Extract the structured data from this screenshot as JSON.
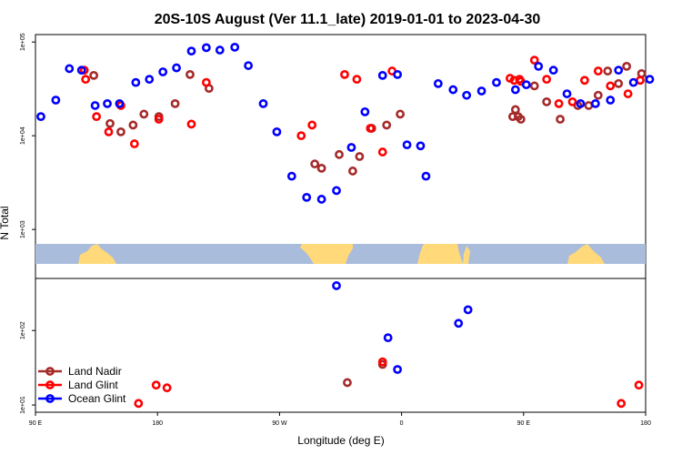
{
  "chart_data": {
    "type": "scatter",
    "title": "20S-10S August (Ver 11.1_late)   2019-01-01 to 2023-04-30",
    "xlabel": "Longitude (deg E)",
    "ylabel": "N Total",
    "x_tick_labels": [
      "90 E",
      "180",
      "90 W",
      "0",
      "90 E",
      "180"
    ],
    "x_ticks_deg": [
      90,
      180,
      270,
      360,
      450,
      540
    ],
    "xlim": [
      90,
      540
    ],
    "y_scale": "log",
    "upper_panel": {
      "ylim": [
        300,
        120000
      ],
      "y_tick_labels": [
        "1e+03",
        "1e+04",
        "1e+05"
      ],
      "y_ticks": [
        1000,
        10000,
        100000
      ]
    },
    "lower_panel": {
      "ylim": [
        8,
        500
      ],
      "y_tick_labels": [
        "1e+01",
        "1e+02"
      ],
      "y_ticks": [
        10,
        100
      ]
    },
    "legend_position": "bottom-left",
    "series": [
      {
        "name": "Land Nadir",
        "color": "#a52a2a",
        "panel": "upper",
        "points": [
          [
            133,
            44000
          ],
          [
            145,
            13500
          ],
          [
            153,
            11000
          ],
          [
            162,
            13000
          ],
          [
            170,
            17000
          ],
          [
            181,
            16000
          ],
          [
            193,
            22000
          ],
          [
            204,
            45000
          ],
          [
            218,
            32000
          ],
          [
            296,
            5000
          ],
          [
            301,
            4500
          ],
          [
            314,
            6300
          ],
          [
            324,
            4200
          ],
          [
            329,
            6000
          ],
          [
            338,
            12000
          ],
          [
            349,
            13000
          ],
          [
            359,
            17000
          ],
          [
            442,
            16000
          ],
          [
            444,
            19000
          ],
          [
            446,
            16000
          ],
          [
            448,
            15000
          ],
          [
            458,
            34000
          ],
          [
            467,
            23000
          ],
          [
            477,
            15000
          ],
          [
            490,
            21000
          ],
          [
            498,
            21000
          ],
          [
            505,
            27000
          ],
          [
            512,
            49000
          ],
          [
            520,
            36000
          ],
          [
            526,
            55000
          ],
          [
            537,
            46000
          ]
        ]
      },
      {
        "name": "Land Glint",
        "color": "#ff0000",
        "panel": "upper",
        "points": [
          [
            126,
            50000
          ],
          [
            127,
            40000
          ],
          [
            135,
            16000
          ],
          [
            144,
            11000
          ],
          [
            153,
            21000
          ],
          [
            163,
            8200
          ],
          [
            181,
            15000
          ],
          [
            205,
            13300
          ],
          [
            216,
            37000
          ],
          [
            286,
            10000
          ],
          [
            294,
            13000
          ],
          [
            318,
            45000
          ],
          [
            327,
            40000
          ],
          [
            337,
            12000
          ],
          [
            346,
            6700
          ],
          [
            353,
            49000
          ],
          [
            440,
            41000
          ],
          [
            443,
            39000
          ],
          [
            447,
            40000
          ],
          [
            448,
            38000
          ],
          [
            458,
            64000
          ],
          [
            467,
            40000
          ],
          [
            476,
            22000
          ],
          [
            486,
            23000
          ],
          [
            495,
            39000
          ],
          [
            505,
            49000
          ],
          [
            514,
            34000
          ],
          [
            527,
            28000
          ],
          [
            536,
            39000
          ]
        ]
      },
      {
        "name": "Ocean Glint",
        "color": "#0000ff",
        "panel": "upper",
        "points": [
          [
            94,
            16000
          ],
          [
            105,
            24000
          ],
          [
            115,
            52000
          ],
          [
            124,
            50000
          ],
          [
            134,
            21000
          ],
          [
            143,
            22000
          ],
          [
            152,
            22000
          ],
          [
            164,
            37000
          ],
          [
            174,
            40000
          ],
          [
            184,
            48000
          ],
          [
            194,
            53000
          ],
          [
            205,
            80000
          ],
          [
            216,
            87000
          ],
          [
            226,
            82000
          ],
          [
            237,
            88000
          ],
          [
            247,
            56000
          ],
          [
            258,
            22000
          ],
          [
            268,
            11000
          ],
          [
            279,
            3700
          ],
          [
            290,
            2200
          ],
          [
            301,
            2100
          ],
          [
            312,
            2600
          ],
          [
            323,
            7500
          ],
          [
            333,
            18000
          ],
          [
            346,
            44000
          ],
          [
            357,
            45000
          ],
          [
            364,
            8000
          ],
          [
            374,
            7800
          ],
          [
            378,
            3700
          ],
          [
            387,
            36000
          ],
          [
            398,
            31000
          ],
          [
            408,
            27000
          ],
          [
            419,
            30000
          ],
          [
            430,
            37000
          ],
          [
            444,
            31000
          ],
          [
            452,
            35000
          ],
          [
            461,
            55000
          ],
          [
            472,
            50000
          ],
          [
            482,
            28000
          ],
          [
            492,
            22000
          ],
          [
            503,
            22000
          ],
          [
            514,
            24000
          ],
          [
            520,
            50000
          ],
          [
            531,
            37000
          ],
          [
            543,
            40000
          ]
        ]
      },
      {
        "name": "Land Nadir",
        "color": "#a52a2a",
        "panel": "lower",
        "points": [
          [
            320,
            20
          ],
          [
            346,
            35
          ]
        ]
      },
      {
        "name": "Land Glint",
        "color": "#ff0000",
        "panel": "lower",
        "points": [
          [
            166,
            10.5
          ],
          [
            179,
            18.5
          ],
          [
            187,
            17
          ],
          [
            346,
            38
          ],
          [
            522,
            10.5
          ],
          [
            535,
            18.5
          ]
        ]
      },
      {
        "name": "Ocean Glint",
        "color": "#0000ff",
        "panel": "lower",
        "points": [
          [
            312,
            400
          ],
          [
            357,
            30
          ],
          [
            350,
            80
          ],
          [
            402,
            125
          ],
          [
            409,
            190
          ]
        ]
      }
    ]
  }
}
